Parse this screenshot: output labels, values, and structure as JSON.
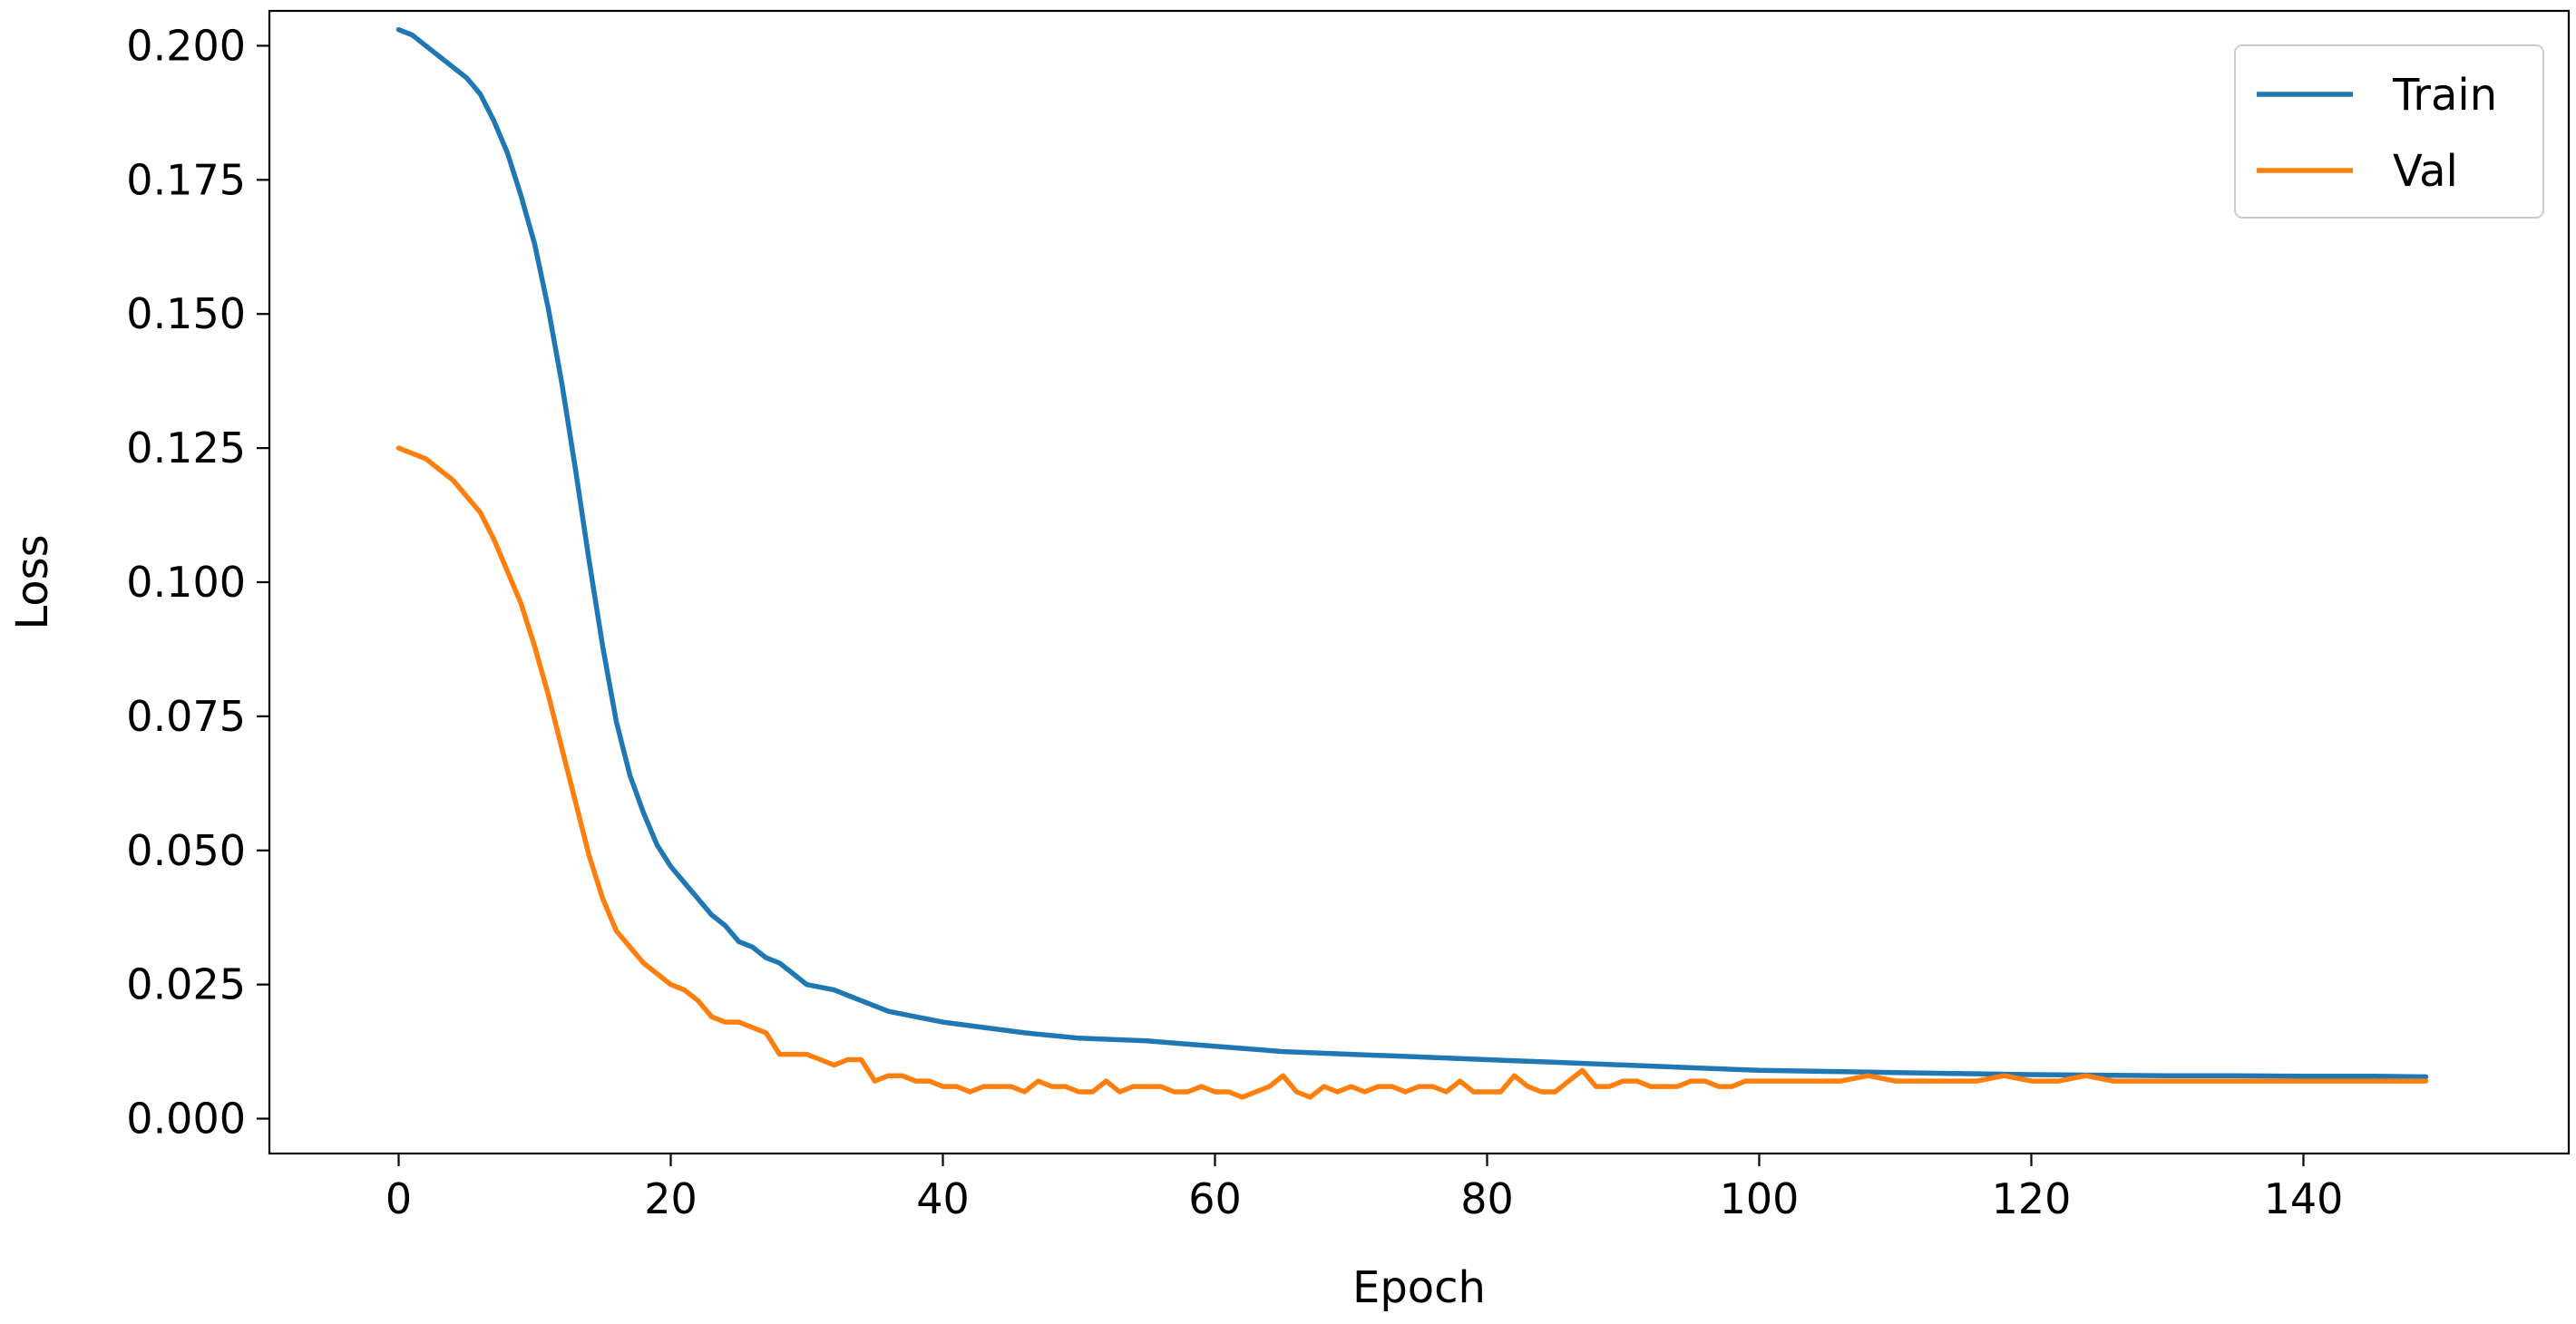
{
  "chart_data": {
    "type": "line",
    "title": "",
    "xlabel": "Epoch",
    "ylabel": "Loss",
    "xlim": [
      -9.5,
      159.5
    ],
    "ylim": [
      -0.0065,
      0.2065
    ],
    "xticks": [
      0,
      20,
      40,
      60,
      80,
      100,
      120,
      140
    ],
    "xtick_labels": [
      "0",
      "20",
      "40",
      "60",
      "80",
      "100",
      "120",
      "140"
    ],
    "yticks": [
      0.0,
      0.025,
      0.05,
      0.075,
      0.1,
      0.125,
      0.15,
      0.175,
      0.2
    ],
    "ytick_labels": [
      "0.000",
      "0.025",
      "0.050",
      "0.075",
      "0.100",
      "0.125",
      "0.150",
      "0.175",
      "0.200"
    ],
    "grid": false,
    "legend_position": "top-right",
    "series": [
      {
        "name": "Train",
        "color": "#1f77b4",
        "points": [
          [
            0,
            0.203
          ],
          [
            1,
            0.202
          ],
          [
            2,
            0.2
          ],
          [
            3,
            0.198
          ],
          [
            4,
            0.196
          ],
          [
            5,
            0.194
          ],
          [
            6,
            0.191
          ],
          [
            7,
            0.186
          ],
          [
            8,
            0.18
          ],
          [
            9,
            0.172
          ],
          [
            10,
            0.163
          ],
          [
            11,
            0.151
          ],
          [
            12,
            0.137
          ],
          [
            13,
            0.121
          ],
          [
            14,
            0.104
          ],
          [
            15,
            0.088
          ],
          [
            16,
            0.074
          ],
          [
            17,
            0.064
          ],
          [
            18,
            0.057
          ],
          [
            19,
            0.051
          ],
          [
            20,
            0.047
          ],
          [
            21,
            0.044
          ],
          [
            22,
            0.041
          ],
          [
            23,
            0.038
          ],
          [
            24,
            0.036
          ],
          [
            25,
            0.033
          ],
          [
            26,
            0.032
          ],
          [
            27,
            0.03
          ],
          [
            28,
            0.029
          ],
          [
            29,
            0.027
          ],
          [
            30,
            0.025
          ],
          [
            32,
            0.024
          ],
          [
            34,
            0.022
          ],
          [
            36,
            0.02
          ],
          [
            38,
            0.019
          ],
          [
            40,
            0.018
          ],
          [
            43,
            0.017
          ],
          [
            46,
            0.016
          ],
          [
            50,
            0.015
          ],
          [
            55,
            0.0145
          ],
          [
            60,
            0.0135
          ],
          [
            65,
            0.0125
          ],
          [
            70,
            0.012
          ],
          [
            75,
            0.0115
          ],
          [
            80,
            0.011
          ],
          [
            85,
            0.0105
          ],
          [
            90,
            0.01
          ],
          [
            95,
            0.0095
          ],
          [
            100,
            0.009
          ],
          [
            105,
            0.0088
          ],
          [
            110,
            0.0086
          ],
          [
            115,
            0.0084
          ],
          [
            120,
            0.0082
          ],
          [
            125,
            0.0081
          ],
          [
            130,
            0.008
          ],
          [
            135,
            0.008
          ],
          [
            140,
            0.0079
          ],
          [
            145,
            0.0079
          ],
          [
            149,
            0.0078
          ]
        ]
      },
      {
        "name": "Val",
        "color": "#ff7f0e",
        "points": [
          [
            0,
            0.125
          ],
          [
            1,
            0.124
          ],
          [
            2,
            0.123
          ],
          [
            3,
            0.121
          ],
          [
            4,
            0.119
          ],
          [
            5,
            0.116
          ],
          [
            6,
            0.113
          ],
          [
            7,
            0.108
          ],
          [
            8,
            0.102
          ],
          [
            9,
            0.096
          ],
          [
            10,
            0.088
          ],
          [
            11,
            0.079
          ],
          [
            12,
            0.069
          ],
          [
            13,
            0.059
          ],
          [
            14,
            0.049
          ],
          [
            15,
            0.041
          ],
          [
            16,
            0.035
          ],
          [
            17,
            0.032
          ],
          [
            18,
            0.029
          ],
          [
            19,
            0.027
          ],
          [
            20,
            0.025
          ],
          [
            21,
            0.024
          ],
          [
            22,
            0.022
          ],
          [
            23,
            0.019
          ],
          [
            24,
            0.018
          ],
          [
            25,
            0.018
          ],
          [
            26,
            0.017
          ],
          [
            27,
            0.016
          ],
          [
            28,
            0.012
          ],
          [
            29,
            0.012
          ],
          [
            30,
            0.012
          ],
          [
            31,
            0.011
          ],
          [
            32,
            0.01
          ],
          [
            33,
            0.011
          ],
          [
            34,
            0.011
          ],
          [
            35,
            0.007
          ],
          [
            36,
            0.008
          ],
          [
            37,
            0.008
          ],
          [
            38,
            0.007
          ],
          [
            39,
            0.007
          ],
          [
            40,
            0.006
          ],
          [
            41,
            0.006
          ],
          [
            42,
            0.005
          ],
          [
            43,
            0.006
          ],
          [
            44,
            0.006
          ],
          [
            45,
            0.006
          ],
          [
            46,
            0.005
          ],
          [
            47,
            0.007
          ],
          [
            48,
            0.006
          ],
          [
            49,
            0.006
          ],
          [
            50,
            0.005
          ],
          [
            51,
            0.005
          ],
          [
            52,
            0.007
          ],
          [
            53,
            0.005
          ],
          [
            54,
            0.006
          ],
          [
            55,
            0.006
          ],
          [
            56,
            0.006
          ],
          [
            57,
            0.005
          ],
          [
            58,
            0.005
          ],
          [
            59,
            0.006
          ],
          [
            60,
            0.005
          ],
          [
            61,
            0.005
          ],
          [
            62,
            0.004
          ],
          [
            63,
            0.005
          ],
          [
            64,
            0.006
          ],
          [
            65,
            0.008
          ],
          [
            66,
            0.005
          ],
          [
            67,
            0.004
          ],
          [
            68,
            0.006
          ],
          [
            69,
            0.005
          ],
          [
            70,
            0.006
          ],
          [
            71,
            0.005
          ],
          [
            72,
            0.006
          ],
          [
            73,
            0.006
          ],
          [
            74,
            0.005
          ],
          [
            75,
            0.006
          ],
          [
            76,
            0.006
          ],
          [
            77,
            0.005
          ],
          [
            78,
            0.007
          ],
          [
            79,
            0.005
          ],
          [
            80,
            0.005
          ],
          [
            81,
            0.005
          ],
          [
            82,
            0.008
          ],
          [
            83,
            0.006
          ],
          [
            84,
            0.005
          ],
          [
            85,
            0.005
          ],
          [
            86,
            0.007
          ],
          [
            87,
            0.009
          ],
          [
            88,
            0.006
          ],
          [
            89,
            0.006
          ],
          [
            90,
            0.007
          ],
          [
            91,
            0.007
          ],
          [
            92,
            0.006
          ],
          [
            93,
            0.006
          ],
          [
            94,
            0.006
          ],
          [
            95,
            0.007
          ],
          [
            96,
            0.007
          ],
          [
            97,
            0.006
          ],
          [
            98,
            0.006
          ],
          [
            99,
            0.007
          ],
          [
            100,
            0.007
          ],
          [
            102,
            0.007
          ],
          [
            104,
            0.007
          ],
          [
            106,
            0.007
          ],
          [
            108,
            0.008
          ],
          [
            110,
            0.007
          ],
          [
            112,
            0.007
          ],
          [
            114,
            0.007
          ],
          [
            116,
            0.007
          ],
          [
            118,
            0.008
          ],
          [
            120,
            0.007
          ],
          [
            122,
            0.007
          ],
          [
            124,
            0.008
          ],
          [
            126,
            0.007
          ],
          [
            128,
            0.007
          ],
          [
            130,
            0.007
          ],
          [
            132,
            0.007
          ],
          [
            134,
            0.007
          ],
          [
            136,
            0.007
          ],
          [
            138,
            0.007
          ],
          [
            140,
            0.007
          ],
          [
            142,
            0.007
          ],
          [
            144,
            0.007
          ],
          [
            146,
            0.007
          ],
          [
            148,
            0.007
          ],
          [
            149,
            0.007
          ]
        ]
      }
    ]
  }
}
